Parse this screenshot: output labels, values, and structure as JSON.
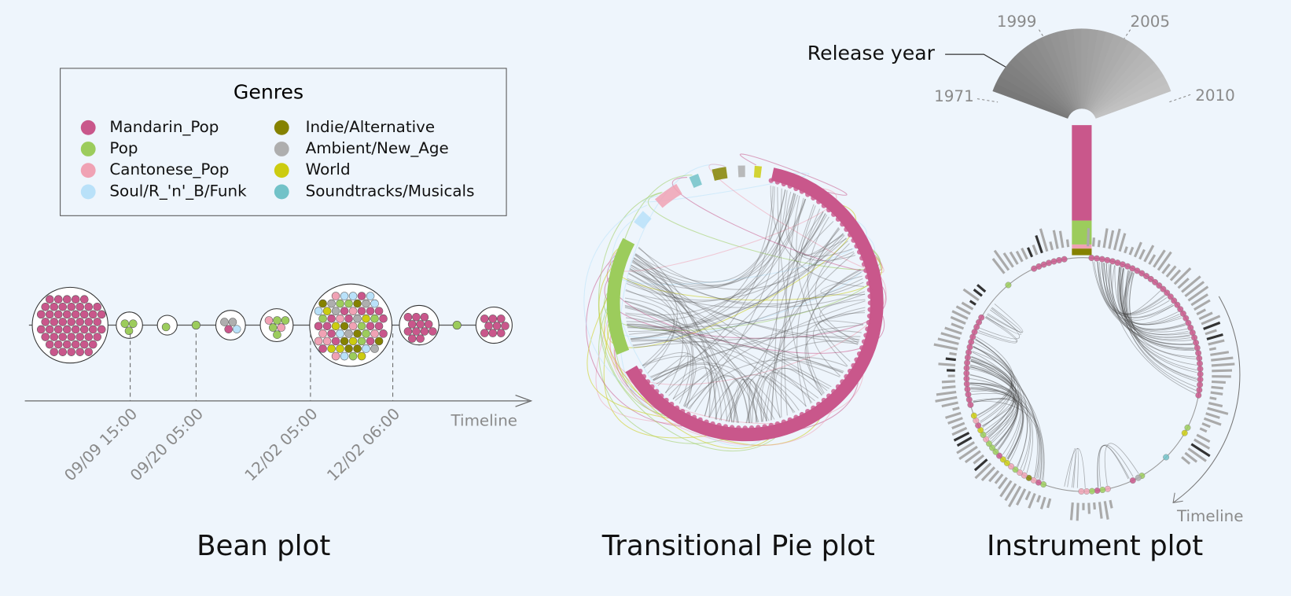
{
  "legend": {
    "title": "Genres",
    "items": [
      {
        "label": "Mandarin_Pop",
        "color": "#c9578b"
      },
      {
        "label": "Pop",
        "color": "#9ccc5c"
      },
      {
        "label": "Cantonese_Pop",
        "color": "#f0a2b4"
      },
      {
        "label": "Soul/R_'n'_B/Funk",
        "color": "#b9e1f9"
      },
      {
        "label": "Indie/Alternative",
        "color": "#858200"
      },
      {
        "label": "Ambient/New_Age",
        "color": "#aeaeae"
      },
      {
        "label": "World",
        "color": "#cccc10"
      },
      {
        "label": "Soundtracks/Musicals",
        "color": "#72c2c8"
      }
    ]
  },
  "bean_plot": {
    "title": "Bean plot",
    "axis_label": "Timeline",
    "time_labels": [
      "09/09 15:00",
      "09/20 05:00",
      "12/02 05:00",
      "12/02 06:00"
    ]
  },
  "pie_plot": {
    "title": "Transitional Pie plot"
  },
  "instrument_plot": {
    "title": "Instrument plot",
    "release_label": "Release year",
    "years": [
      "1971",
      "1999",
      "2005",
      "2010"
    ],
    "axis_label": "Timeline"
  }
}
